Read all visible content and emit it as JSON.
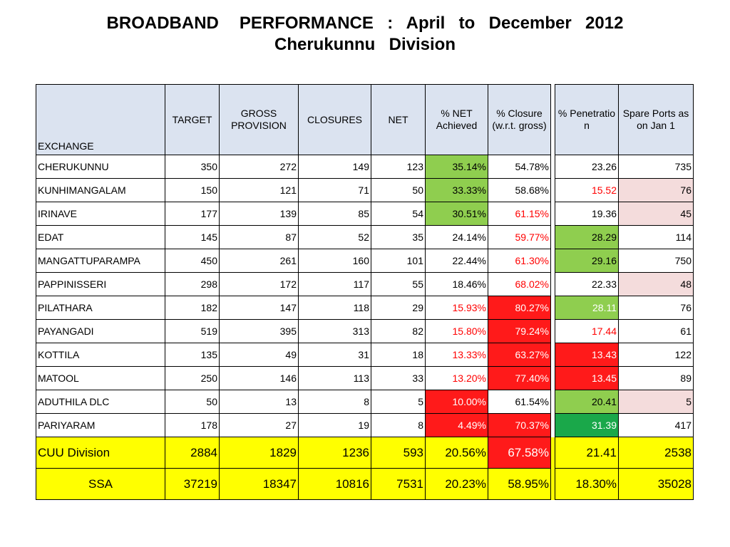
{
  "title": {
    "line1": "BROADBAND   PERFORMANCE  :  April  to  December  2012",
    "line2": "Cherukunnu  Division"
  },
  "headers": {
    "exchange": "EXCHANGE",
    "target": "TARGET",
    "gross": "GROSS PROVISION",
    "closures": "CLOSURES",
    "net": "NET",
    "pct_net": "%   NET Achieved",
    "pct_closure": "% Closure (w.r.t. gross)",
    "penetration": "% Penetratio n",
    "spare": "Spare  Ports as  on  Jan 1"
  },
  "rows": [
    {
      "exchange": "CHERUKUNNU",
      "target": "350",
      "gross": "272",
      "closures": "149",
      "net": "123",
      "pct_net": "35.14%",
      "pct_closure": "54.78%",
      "penetration": "23.26",
      "spare": "735"
    },
    {
      "exchange": "KUNHIMANGALAM",
      "target": "150",
      "gross": "121",
      "closures": "71",
      "net": "50",
      "pct_net": "33.33%",
      "pct_closure": "58.68%",
      "penetration": "15.52",
      "spare": "76"
    },
    {
      "exchange": "IRINAVE",
      "target": "177",
      "gross": "139",
      "closures": "85",
      "net": "54",
      "pct_net": "30.51%",
      "pct_closure": "61.15%",
      "penetration": "19.36",
      "spare": "45"
    },
    {
      "exchange": "EDAT",
      "target": "145",
      "gross": "87",
      "closures": "52",
      "net": "35",
      "pct_net": "24.14%",
      "pct_closure": "59.77%",
      "penetration": "28.29",
      "spare": "114"
    },
    {
      "exchange": "MANGATTUPARAMPA",
      "target": "450",
      "gross": "261",
      "closures": "160",
      "net": "101",
      "pct_net": "22.44%",
      "pct_closure": "61.30%",
      "penetration": "29.16",
      "spare": "750"
    },
    {
      "exchange": "PAPPINISSERI",
      "target": "298",
      "gross": "172",
      "closures": "117",
      "net": "55",
      "pct_net": "18.46%",
      "pct_closure": "68.02%",
      "penetration": "22.33",
      "spare": "48"
    },
    {
      "exchange": "PILATHARA",
      "target": "182",
      "gross": "147",
      "closures": "118",
      "net": "29",
      "pct_net": "15.93%",
      "pct_closure": "80.27%",
      "penetration": "28.11",
      "spare": "76"
    },
    {
      "exchange": "PAYANGADI",
      "target": "519",
      "gross": "395",
      "closures": "313",
      "net": "82",
      "pct_net": "15.80%",
      "pct_closure": "79.24%",
      "penetration": "17.44",
      "spare": "61"
    },
    {
      "exchange": "KOTTILA",
      "target": "135",
      "gross": "49",
      "closures": "31",
      "net": "18",
      "pct_net": "13.33%",
      "pct_closure": "63.27%",
      "penetration": "13.43",
      "spare": "122"
    },
    {
      "exchange": "MATOOL",
      "target": "250",
      "gross": "146",
      "closures": "113",
      "net": "33",
      "pct_net": "13.20%",
      "pct_closure": "77.40%",
      "penetration": "13.45",
      "spare": "89"
    },
    {
      "exchange": "ADUTHILA DLC",
      "target": "50",
      "gross": "13",
      "closures": "8",
      "net": "5",
      "pct_net": "10.00%",
      "pct_closure": "61.54%",
      "penetration": "20.41",
      "spare": "5"
    },
    {
      "exchange": "PARIYARAM",
      "target": "178",
      "gross": "27",
      "closures": "19",
      "net": "8",
      "pct_net": "4.49%",
      "pct_closure": "70.37%",
      "penetration": "31.39",
      "spare": "417"
    }
  ],
  "division": {
    "exchange": "CUU   Division",
    "target": "2884",
    "gross": "1829",
    "closures": "1236",
    "net": "593",
    "pct_net": "20.56%",
    "pct_closure": "67.58%",
    "penetration": "21.41",
    "spare": "2538"
  },
  "ssa": {
    "exchange": "SSA",
    "target": "37219",
    "gross": "18347",
    "closures": "10816",
    "net": "7531",
    "pct_net": "20.23%",
    "pct_closure": "58.95%",
    "penetration": "18.30%",
    "spare": "35028"
  },
  "colors": {
    "green": "#8fce4f",
    "dark_green": "#1aa84a",
    "red": "#ff1a1a",
    "pink": "#f4dcdc",
    "yellow": "#ffff00",
    "header_blue": "#dbe3f0"
  }
}
